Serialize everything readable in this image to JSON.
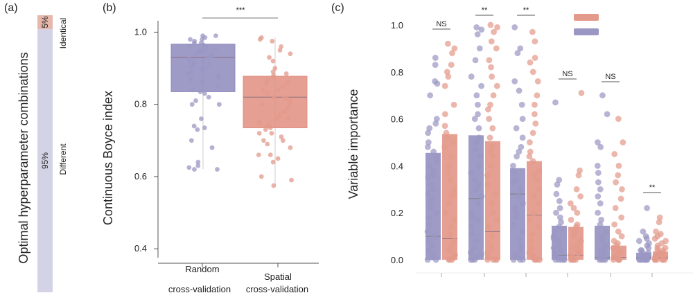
{
  "colors": {
    "random": "#9b97c4",
    "spatial": "#e39a8b",
    "random_box": "#8e89bd",
    "spatial_box": "#e08f80",
    "identical": "#e7b7ab",
    "different": "#d4d3e6",
    "axis": "#555555"
  },
  "panel_a": {
    "label": "(a)",
    "ylabel": "Optimal hyperparameter combinations",
    "identical": {
      "pct": "5%",
      "label": "Identical",
      "fraction": 0.05
    },
    "different": {
      "pct": "95%",
      "label": "Different",
      "fraction": 0.95
    }
  },
  "panel_b": {
    "label": "(b)",
    "ylabel": "Continuous Boyce index",
    "significance": "***",
    "yticks": [
      "1.0",
      "0.8",
      "0.6",
      "0.4"
    ],
    "x_labels": [
      {
        "line1": "Random",
        "line2": "cross-validation"
      },
      {
        "line1": "Spatial",
        "line2": "cross-validation"
      }
    ]
  },
  "panel_c": {
    "label": "(c)",
    "ylabel": "Variable importance",
    "yticks": [
      "1.0",
      "0.8",
      "0.6",
      "0.4",
      "0.2",
      "0.0"
    ],
    "significance": [
      "NS",
      "**",
      "**",
      "NS",
      "NS",
      "**"
    ]
  },
  "chart_data": [
    {
      "type": "bar",
      "panel": "a",
      "title": "",
      "categories": [
        "Identical",
        "Different"
      ],
      "values": [
        5,
        95
      ],
      "ylabel": "Optimal hyperparameter combinations"
    },
    {
      "type": "box",
      "panel": "b",
      "ylabel": "Continuous Boyce index",
      "ylim": [
        0.36,
        1.02
      ],
      "categories": [
        "Random cross-validation",
        "Spatial cross-validation"
      ],
      "series": [
        {
          "name": "Random cross-validation",
          "q1": 0.835,
          "median": 0.93,
          "q3": 0.967,
          "whisker_low": 0.62,
          "whisker_high": 0.99,
          "points": [
            0.99,
            0.985,
            0.98,
            0.975,
            0.97,
            0.965,
            0.96,
            0.955,
            0.95,
            0.945,
            0.94,
            0.935,
            0.93,
            0.925,
            0.92,
            0.915,
            0.91,
            0.905,
            0.9,
            0.895,
            0.89,
            0.885,
            0.88,
            0.875,
            0.87,
            0.86,
            0.85,
            0.84,
            0.835,
            0.83,
            0.82,
            0.81,
            0.8,
            0.8,
            0.76,
            0.74,
            0.735,
            0.73,
            0.7,
            0.68,
            0.64,
            0.63,
            0.625,
            0.62,
            0.62,
            0.99,
            0.98,
            0.97,
            0.96,
            0.95,
            0.94,
            0.93,
            0.92,
            0.91,
            0.9
          ]
        },
        {
          "name": "Spatial cross-validation",
          "q1": 0.735,
          "median": 0.82,
          "q3": 0.878,
          "whisker_low": 0.575,
          "whisker_high": 0.985,
          "points": [
            0.985,
            0.98,
            0.975,
            0.96,
            0.95,
            0.94,
            0.93,
            0.92,
            0.9,
            0.89,
            0.885,
            0.88,
            0.875,
            0.87,
            0.86,
            0.85,
            0.84,
            0.83,
            0.82,
            0.815,
            0.81,
            0.8,
            0.79,
            0.78,
            0.77,
            0.76,
            0.75,
            0.74,
            0.735,
            0.73,
            0.72,
            0.71,
            0.7,
            0.69,
            0.68,
            0.66,
            0.66,
            0.65,
            0.64,
            0.6,
            0.59,
            0.575,
            0.86,
            0.84,
            0.82,
            0.8,
            0.78,
            0.76,
            0.74,
            0.72,
            0.7
          ]
        }
      ]
    },
    {
      "type": "bar",
      "panel": "c",
      "ylabel": "Variable importance",
      "ylim": [
        0,
        1
      ],
      "groups": 6,
      "series": [
        {
          "name": "Random cross-validation",
          "means": [
            0.455,
            0.53,
            0.39,
            0.145,
            0.145,
            0.03
          ],
          "median_lines": [
            0.1,
            0.26,
            0.28,
            0.02,
            0.01,
            0.01
          ],
          "points": [
            [
              0.86,
              0.83,
              0.76,
              0.75,
              0.7,
              0.6,
              0.56,
              0.54,
              0.5,
              0.48,
              0.46,
              0.44,
              0.42,
              0.4,
              0.38,
              0.35,
              0.32,
              0.3,
              0.28,
              0.26,
              0.24,
              0.22,
              0.2,
              0.18,
              0.15,
              0.12,
              0.1,
              0.08,
              0.06,
              0.04,
              0.02,
              0.01,
              0.0,
              0.0,
              0.36,
              0.58
            ],
            [
              0.99,
              0.98,
              0.96,
              0.9,
              0.85,
              0.78,
              0.74,
              0.7,
              0.66,
              0.6,
              0.56,
              0.52,
              0.5,
              0.47,
              0.44,
              0.4,
              0.37,
              0.34,
              0.3,
              0.27,
              0.24,
              0.2,
              0.17,
              0.14,
              0.11,
              0.08,
              0.05,
              0.03,
              0.02,
              0.01,
              0.0,
              0.0,
              0.0,
              0.62,
              0.18,
              0.32
            ],
            [
              0.99,
              0.9,
              0.88,
              0.76,
              0.72,
              0.66,
              0.6,
              0.56,
              0.52,
              0.48,
              0.44,
              0.4,
              0.37,
              0.33,
              0.3,
              0.27,
              0.24,
              0.22,
              0.2,
              0.18,
              0.15,
              0.12,
              0.09,
              0.06,
              0.04,
              0.02,
              0.01,
              0.0,
              0.0,
              0.0,
              0.46,
              0.34
            ],
            [
              0.67,
              0.34,
              0.32,
              0.28,
              0.25,
              0.22,
              0.2,
              0.18,
              0.16,
              0.14,
              0.12,
              0.1,
              0.08,
              0.06,
              0.05,
              0.04,
              0.03,
              0.02,
              0.01,
              0.0,
              0.0,
              0.0,
              0.0,
              0.0,
              0.09,
              0.13
            ],
            [
              0.7,
              0.62,
              0.5,
              0.48,
              0.4,
              0.37,
              0.33,
              0.3,
              0.27,
              0.24,
              0.2,
              0.17,
              0.15,
              0.12,
              0.1,
              0.08,
              0.06,
              0.05,
              0.04,
              0.03,
              0.02,
              0.01,
              0.0,
              0.0,
              0.0,
              0.0
            ],
            [
              0.22,
              0.12,
              0.1,
              0.09,
              0.08,
              0.07,
              0.06,
              0.05,
              0.04,
              0.04,
              0.03,
              0.03,
              0.02,
              0.02,
              0.01,
              0.01,
              0.0,
              0.0,
              0.0,
              0.0,
              0.0,
              0.0,
              0.0,
              0.0
            ]
          ]
        },
        {
          "name": "Spatial cross-validation",
          "means": [
            0.535,
            0.505,
            0.42,
            0.14,
            0.06,
            0.035
          ],
          "median_lines": [
            0.09,
            0.12,
            0.19,
            0.02,
            0.01,
            0.01
          ],
          "points": [
            [
              0.92,
              0.9,
              0.88,
              0.83,
              0.8,
              0.78,
              0.74,
              0.66,
              0.62,
              0.57,
              0.54,
              0.52,
              0.48,
              0.44,
              0.4,
              0.37,
              0.34,
              0.3,
              0.27,
              0.24,
              0.2,
              0.17,
              0.14,
              0.11,
              0.08,
              0.06,
              0.04,
              0.02,
              0.01,
              0.0,
              0.0,
              0.0,
              0.5,
              0.28
            ],
            [
              1.0,
              0.99,
              0.97,
              0.93,
              0.9,
              0.85,
              0.82,
              0.78,
              0.74,
              0.7,
              0.64,
              0.6,
              0.56,
              0.52,
              0.48,
              0.44,
              0.4,
              0.36,
              0.32,
              0.28,
              0.24,
              0.2,
              0.17,
              0.14,
              0.1,
              0.07,
              0.05,
              0.03,
              0.01,
              0.0,
              0.0,
              0.0,
              0.0,
              0.66,
              0.46
            ],
            [
              0.97,
              0.93,
              0.86,
              0.84,
              0.8,
              0.76,
              0.7,
              0.66,
              0.62,
              0.58,
              0.54,
              0.5,
              0.46,
              0.42,
              0.38,
              0.34,
              0.3,
              0.27,
              0.24,
              0.2,
              0.17,
              0.14,
              0.11,
              0.08,
              0.05,
              0.03,
              0.02,
              0.01,
              0.0,
              0.0,
              0.0,
              0.0,
              0.44,
              0.36
            ],
            [
              0.71,
              0.38,
              0.36,
              0.3,
              0.27,
              0.24,
              0.22,
              0.2,
              0.17,
              0.15,
              0.12,
              0.1,
              0.08,
              0.06,
              0.05,
              0.04,
              0.03,
              0.02,
              0.01,
              0.0,
              0.0,
              0.0,
              0.0,
              0.0,
              0.14
            ],
            [
              0.6,
              0.5,
              0.45,
              0.4,
              0.36,
              0.33,
              0.3,
              0.26,
              0.22,
              0.18,
              0.15,
              0.12,
              0.1,
              0.08,
              0.07,
              0.06,
              0.05,
              0.04,
              0.03,
              0.02,
              0.01,
              0.0,
              0.0,
              0.0,
              0.0
            ],
            [
              0.18,
              0.16,
              0.12,
              0.11,
              0.1,
              0.09,
              0.08,
              0.07,
              0.06,
              0.05,
              0.05,
              0.04,
              0.04,
              0.03,
              0.03,
              0.02,
              0.02,
              0.01,
              0.01,
              0.0,
              0.0,
              0.0,
              0.0,
              0.0,
              0.0
            ]
          ]
        }
      ]
    }
  ]
}
